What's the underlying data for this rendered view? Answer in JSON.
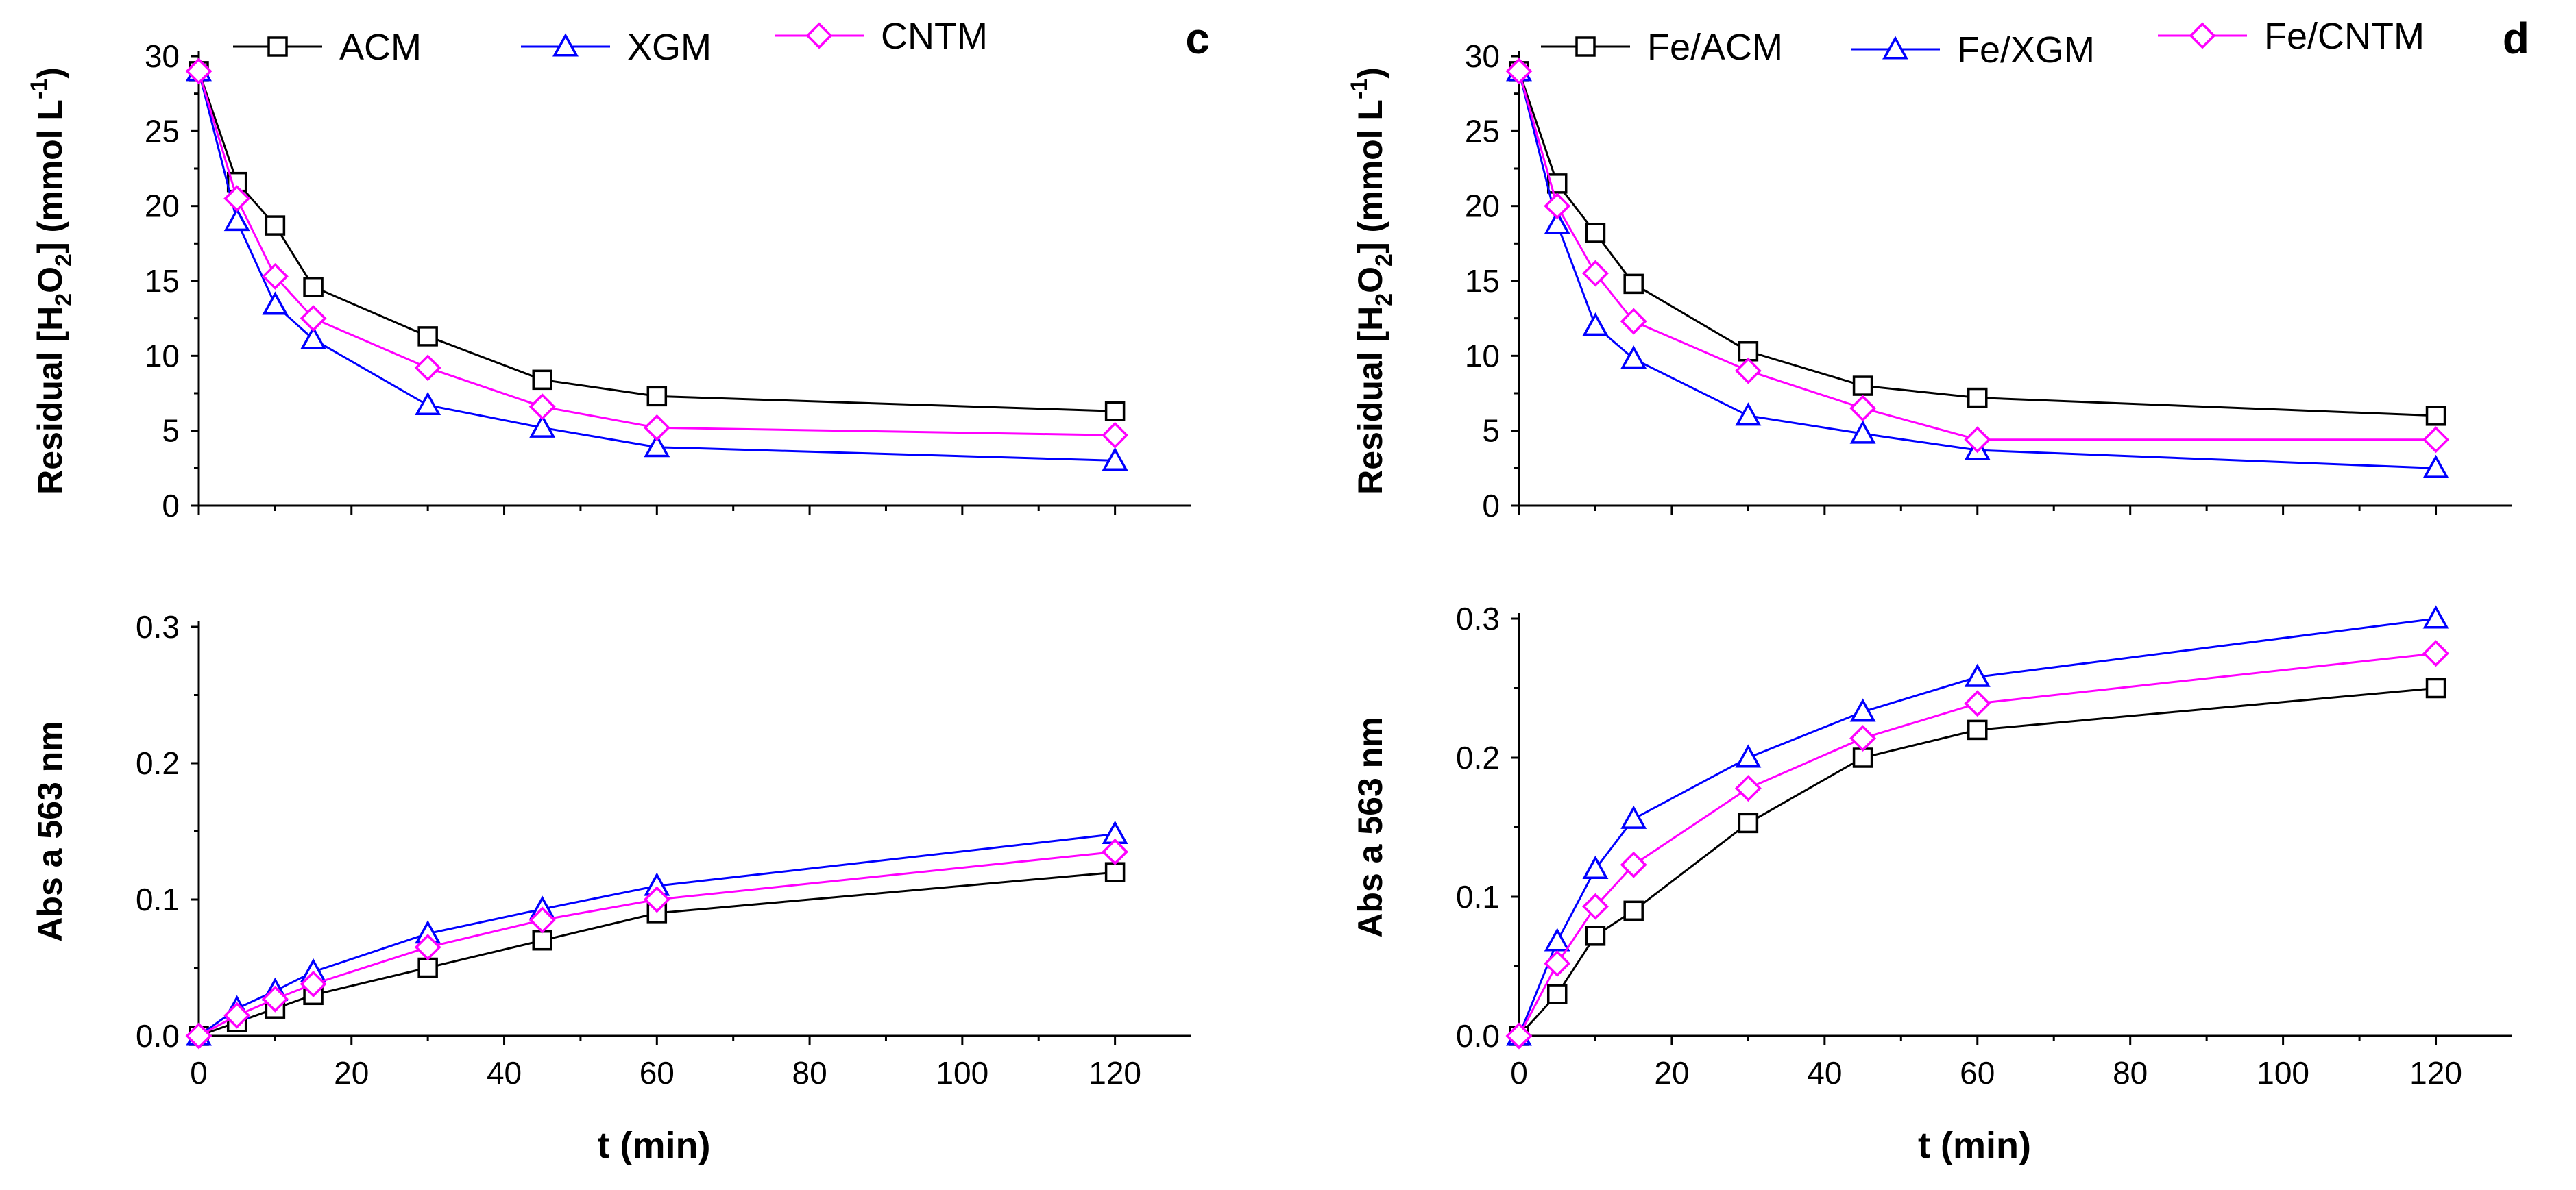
{
  "chart_data": [
    {
      "panel_label": "c",
      "type": "line",
      "x": [
        0,
        5,
        10,
        15,
        30,
        45,
        60,
        120
      ],
      "x_ticks": [
        "0",
        "20",
        "40",
        "60",
        "80",
        "100",
        "120"
      ],
      "x_tick_values": [
        0,
        20,
        40,
        60,
        80,
        100,
        120
      ],
      "xlim": [
        0,
        130
      ],
      "xlabel": "t (min)",
      "top": {
        "ylabel": "Residual [H2O2] (mmol L-1)",
        "ylim": [
          0,
          30
        ],
        "y_ticks": [
          "0",
          "5",
          "10",
          "15",
          "20",
          "25",
          "30"
        ],
        "y_tick_values": [
          0,
          5,
          10,
          15,
          20,
          25,
          30
        ],
        "series": [
          {
            "name": "ACM",
            "color": "#000000",
            "marker": "square",
            "values": [
              29.0,
              21.6,
              18.7,
              14.6,
              11.3,
              8.4,
              7.3,
              6.3
            ]
          },
          {
            "name": "XGM",
            "color": "#0000ff",
            "marker": "triangle",
            "values": [
              29.0,
              19.0,
              13.4,
              11.1,
              6.7,
              5.2,
              3.9,
              3.0
            ]
          },
          {
            "name": "CNTM",
            "color": "#ff00ff",
            "marker": "diamond",
            "values": [
              29.0,
              20.5,
              15.3,
              12.5,
              9.2,
              6.6,
              5.2,
              4.7
            ]
          }
        ]
      },
      "bottom": {
        "ylabel": "Abs a 563 nm",
        "ylim": [
          0,
          0.3
        ],
        "y_ticks": [
          "0.0",
          "0.1",
          "0.2",
          "0.3"
        ],
        "y_tick_values": [
          0,
          0.1,
          0.2,
          0.3
        ],
        "series": [
          {
            "name": "ACM",
            "color": "#000000",
            "marker": "square",
            "values": [
              0.0,
              0.01,
              0.02,
              0.03,
              0.05,
              0.07,
              0.09,
              0.12
            ]
          },
          {
            "name": "XGM",
            "color": "#0000ff",
            "marker": "triangle",
            "values": [
              0.0,
              0.02,
              0.033,
              0.047,
              0.075,
              0.093,
              0.11,
              0.148
            ]
          },
          {
            "name": "CNTM",
            "color": "#ff00ff",
            "marker": "diamond",
            "values": [
              0.0,
              0.015,
              0.027,
              0.038,
              0.065,
              0.085,
              0.1,
              0.135
            ]
          }
        ]
      }
    },
    {
      "panel_label": "d",
      "type": "line",
      "x": [
        0,
        5,
        10,
        15,
        30,
        45,
        60,
        120
      ],
      "x_ticks": [
        "0",
        "20",
        "40",
        "60",
        "80",
        "100",
        "120"
      ],
      "x_tick_values": [
        0,
        20,
        40,
        60,
        80,
        100,
        120
      ],
      "xlim": [
        0,
        130
      ],
      "xlabel": "t (min)",
      "top": {
        "ylabel": "Residual [H2O2] (mmol L-1)",
        "ylim": [
          0,
          30
        ],
        "y_ticks": [
          "0",
          "5",
          "10",
          "15",
          "20",
          "25",
          "30"
        ],
        "y_tick_values": [
          0,
          5,
          10,
          15,
          20,
          25,
          30
        ],
        "series": [
          {
            "name": "Fe/ACM",
            "color": "#000000",
            "marker": "square",
            "values": [
              29.0,
              21.5,
              18.2,
              14.8,
              10.3,
              8.0,
              7.2,
              6.0
            ]
          },
          {
            "name": "Fe/XGM",
            "color": "#0000ff",
            "marker": "triangle",
            "values": [
              29.0,
              18.8,
              12.0,
              9.8,
              6.0,
              4.8,
              3.7,
              2.5
            ]
          },
          {
            "name": "Fe/CNTM",
            "color": "#ff00ff",
            "marker": "diamond",
            "values": [
              29.0,
              20.0,
              15.5,
              12.3,
              9.0,
              6.5,
              4.4,
              4.4
            ]
          }
        ]
      },
      "bottom": {
        "ylabel": "Abs a 563 nm",
        "ylim": [
          0,
          0.3
        ],
        "y_ticks": [
          "0.0",
          "0.1",
          "0.2",
          "0.3"
        ],
        "y_tick_values": [
          0,
          0.1,
          0.2,
          0.3
        ],
        "series": [
          {
            "name": "Fe/ACM",
            "color": "#000000",
            "marker": "square",
            "values": [
              0.0,
              0.03,
              0.072,
              0.09,
              0.153,
              0.2,
              0.22,
              0.25
            ]
          },
          {
            "name": "Fe/XGM",
            "color": "#0000ff",
            "marker": "triangle",
            "values": [
              0.0,
              0.068,
              0.12,
              0.156,
              0.2,
              0.233,
              0.258,
              0.3
            ]
          },
          {
            "name": "Fe/CNTM",
            "color": "#ff00ff",
            "marker": "diamond",
            "values": [
              0.0,
              0.052,
              0.093,
              0.123,
              0.178,
              0.214,
              0.239,
              0.275
            ]
          }
        ]
      }
    }
  ]
}
